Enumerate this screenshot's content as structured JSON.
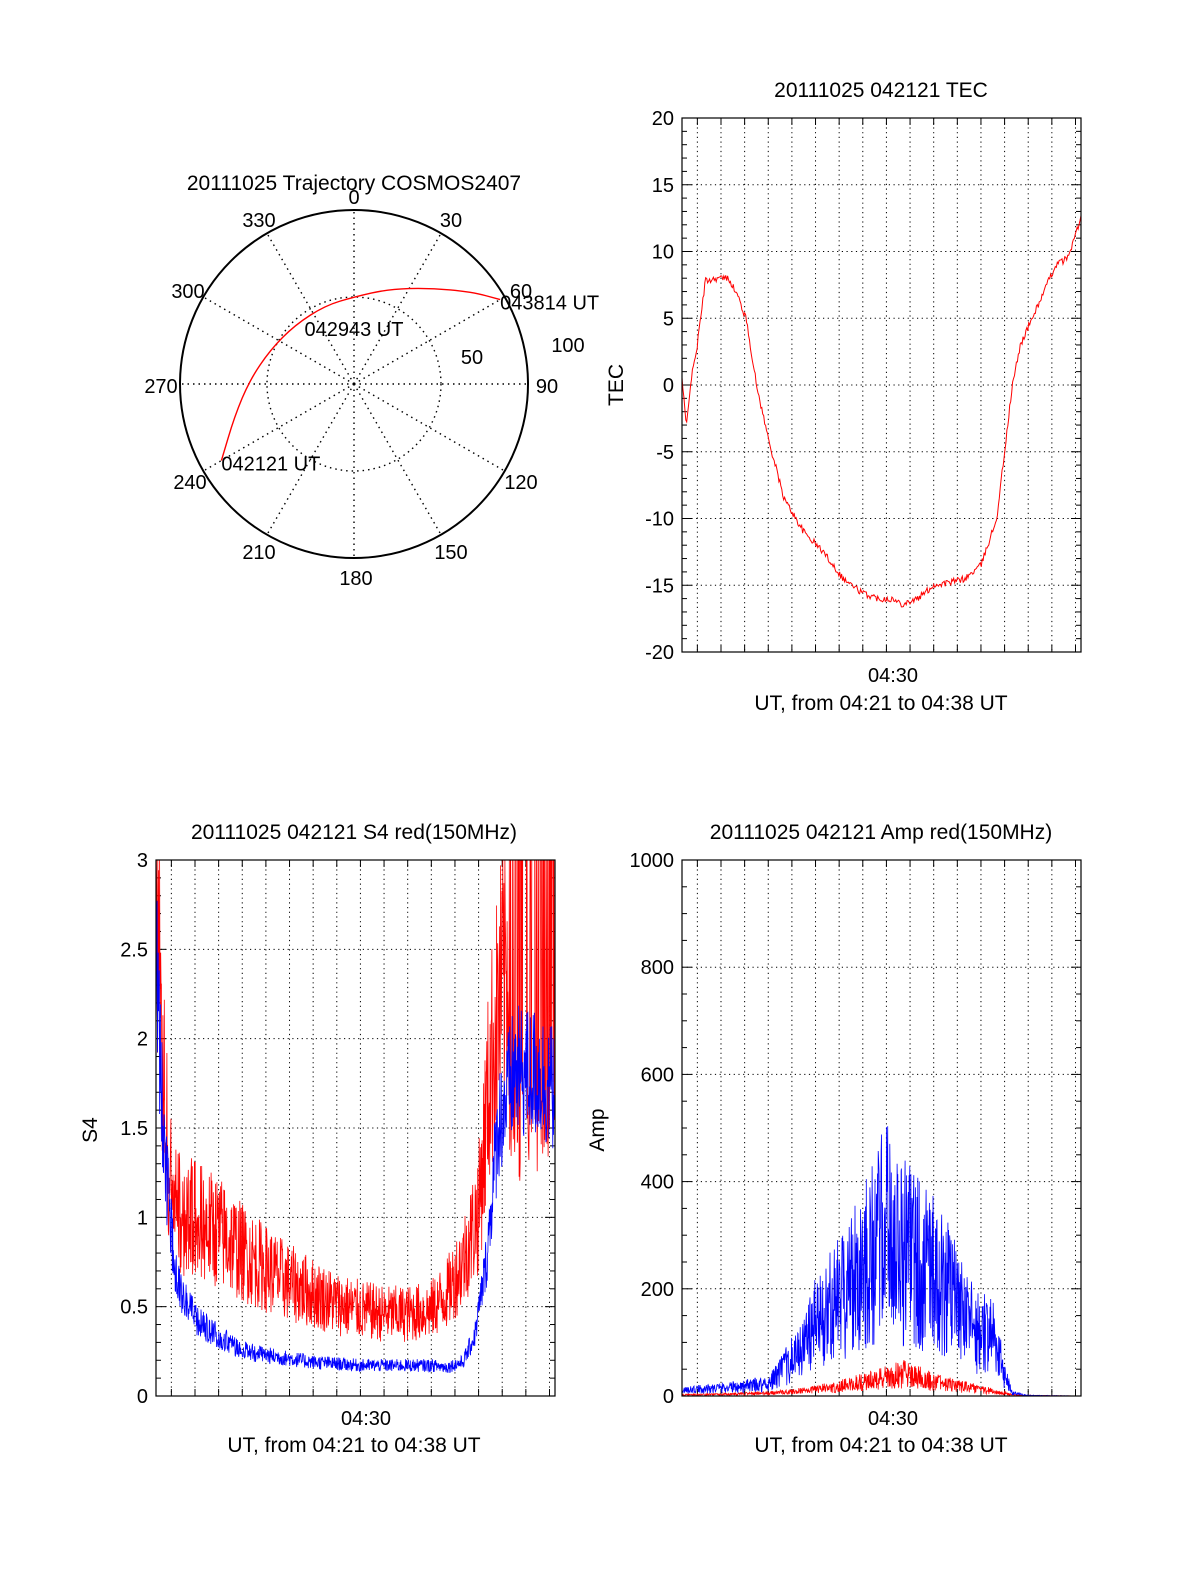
{
  "colors": {
    "red": "#ff0000",
    "blue": "#0000ff",
    "axis": "#000000",
    "grid": "#000000"
  },
  "chart_data": [
    {
      "id": "trajectory",
      "type": "polar",
      "title": "20111025 Trajectory COSMOS2407",
      "azimuth_labels": [
        "0",
        "30",
        "60",
        "90",
        "120",
        "150",
        "180",
        "210",
        "240",
        "270",
        "300",
        "330"
      ],
      "ring_labels": [
        "50",
        "100"
      ],
      "ring_max": 100,
      "grid": true,
      "series": [
        {
          "color": "red",
          "points": [
            [
              240,
              88
            ],
            [
              255,
              71
            ],
            [
              272,
              60
            ],
            [
              292,
              52
            ],
            [
              315,
              48
            ],
            [
              340,
              48
            ],
            [
              0,
              50
            ],
            [
              20,
              58
            ],
            [
              38,
              70
            ],
            [
              52,
              86
            ],
            [
              60,
              97
            ]
          ]
        }
      ],
      "annotations": [
        {
          "text": "042121 UT",
          "az": 240,
          "r": 88
        },
        {
          "text": "042943 UT",
          "az": 340,
          "r": 48
        },
        {
          "text": "043814 UT",
          "az": 60,
          "r": 97
        }
      ]
    },
    {
      "id": "tec",
      "type": "line",
      "title": "20111025 042121 TEC",
      "ylabel": "TEC",
      "xlabel": "UT, from 04:21 to 04:38 UT",
      "xtick_labels": [
        "04:30"
      ],
      "xlim": [
        "04:21:21",
        "04:38:14"
      ],
      "ylim": [
        -20,
        20
      ],
      "yticks": [
        -20,
        -15,
        -10,
        -5,
        0,
        5,
        10,
        15,
        20
      ],
      "grid": true,
      "series": [
        {
          "color": "red",
          "x": [
            "04:21:21",
            "04:21:32",
            "04:21:42",
            "04:22:00",
            "04:22:20",
            "04:22:50",
            "04:23:20",
            "04:23:45",
            "04:24:05",
            "04:24:30",
            "04:25:00",
            "04:25:40",
            "04:26:30",
            "04:27:20",
            "04:28:10",
            "04:29:00",
            "04:29:40",
            "04:30:10",
            "04:30:40",
            "04:31:20",
            "04:32:00",
            "04:32:40",
            "04:33:20",
            "04:34:00",
            "04:34:40",
            "04:35:00",
            "04:35:20",
            "04:35:40",
            "04:36:10",
            "04:36:40",
            "04:37:10",
            "04:37:40",
            "04:38:14"
          ],
          "y": [
            0.5,
            -3.2,
            0.0,
            3.0,
            7.8,
            8.0,
            8.0,
            6.5,
            4.8,
            0.0,
            -4.0,
            -8.5,
            -11.0,
            -12.5,
            -14.5,
            -15.6,
            -16.0,
            -16.0,
            -16.4,
            -16.0,
            -15.0,
            -14.8,
            -14.5,
            -13.5,
            -10.0,
            -5.0,
            0.0,
            3.0,
            5.0,
            7.0,
            9.0,
            9.5,
            12.5
          ]
        }
      ]
    },
    {
      "id": "s4",
      "type": "line",
      "title": "20111025 042121 S4 red(150MHz)",
      "ylabel": "S4",
      "xlabel": "UT, from 04:21 to 04:38 UT",
      "xtick_labels": [
        "04:30"
      ],
      "xlim": [
        "04:21:21",
        "04:38:14"
      ],
      "ylim": [
        0,
        3
      ],
      "yticks": [
        "0",
        "0.5",
        "1",
        "1.5",
        "2",
        "2.5",
        "3"
      ],
      "grid": true,
      "series": [
        {
          "color": "red",
          "x": [
            "04:21:21",
            "04:21:45",
            "04:22:15",
            "04:23:00",
            "04:24:00",
            "04:25:00",
            "04:26:00",
            "04:27:00",
            "04:28:00",
            "04:29:00",
            "04:30:00",
            "04:31:00",
            "04:32:00",
            "04:33:00",
            "04:33:40",
            "04:34:20",
            "04:35:00",
            "04:35:30",
            "04:36:00",
            "04:37:00",
            "04:38:14"
          ],
          "y": [
            2.5,
            1.3,
            0.9,
            0.85,
            0.8,
            0.7,
            0.62,
            0.55,
            0.5,
            0.45,
            0.42,
            0.4,
            0.4,
            0.42,
            0.5,
            0.65,
            0.9,
            1.6,
            2.0,
            2.4,
            2.8
          ]
        },
        {
          "color": "blue",
          "x": [
            "04:21:21",
            "04:21:40",
            "04:22:10",
            "04:23:00",
            "04:24:00",
            "04:25:00",
            "04:26:00",
            "04:27:00",
            "04:28:00",
            "04:29:00",
            "04:30:00",
            "04:31:00",
            "04:32:00",
            "04:33:00",
            "04:33:40",
            "04:34:20",
            "04:34:50",
            "04:35:20",
            "04:35:50",
            "04:36:30",
            "04:37:30",
            "04:38:14"
          ],
          "y": [
            2.6,
            1.5,
            0.7,
            0.45,
            0.35,
            0.27,
            0.24,
            0.22,
            0.2,
            0.19,
            0.18,
            0.18,
            0.18,
            0.18,
            0.17,
            0.2,
            0.35,
            0.8,
            1.6,
            1.9,
            1.9,
            1.8
          ]
        }
      ]
    },
    {
      "id": "amp",
      "type": "line",
      "title": "20111025 042121 Amp red(150MHz)",
      "ylabel": "Amp",
      "xlabel": "UT, from 04:21 to 04:38 UT",
      "xtick_labels": [
        "04:30"
      ],
      "xlim": [
        "04:21:21",
        "04:38:14"
      ],
      "ylim": [
        0,
        1000
      ],
      "yticks": [
        0,
        200,
        400,
        600,
        800,
        1000
      ],
      "grid": true,
      "series": [
        {
          "color": "red",
          "x": [
            "04:21:21",
            "04:23:00",
            "04:25:00",
            "04:26:00",
            "04:27:00",
            "04:28:00",
            "04:29:00",
            "04:30:00",
            "04:30:40",
            "04:31:20",
            "04:32:00",
            "04:33:00",
            "04:34:00",
            "04:35:00",
            "04:35:20",
            "04:36:00",
            "04:38:14"
          ],
          "y": [
            2,
            3,
            5,
            8,
            12,
            18,
            25,
            35,
            40,
            35,
            25,
            18,
            12,
            5,
            2,
            1,
            0
          ]
        },
        {
          "color": "blue",
          "x": [
            "04:21:21",
            "04:22:00",
            "04:23:00",
            "04:24:00",
            "04:25:00",
            "04:25:40",
            "04:26:20",
            "04:27:00",
            "04:27:40",
            "04:28:20",
            "04:29:00",
            "04:29:40",
            "04:30:00",
            "04:30:20",
            "04:30:50",
            "04:31:20",
            "04:32:00",
            "04:32:40",
            "04:33:20",
            "04:34:00",
            "04:34:30",
            "04:35:00",
            "04:35:20",
            "04:36:00",
            "04:38:14"
          ],
          "y": [
            10,
            12,
            15,
            18,
            22,
            50,
            80,
            130,
            160,
            200,
            230,
            280,
            300,
            280,
            260,
            240,
            220,
            190,
            140,
            110,
            120,
            40,
            5,
            1,
            0
          ]
        }
      ]
    }
  ]
}
